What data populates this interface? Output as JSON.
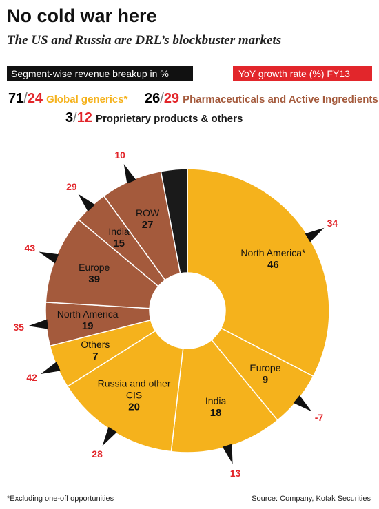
{
  "header": {
    "title": "No cold war here",
    "subtitle": "The US and Russia are DRL’s blockbuster markets"
  },
  "legend": {
    "share_label": "Segment-wise revenue breakup in %",
    "growth_label": "YoY growth rate (%) FY13",
    "separator": "/"
  },
  "chart_data": {
    "type": "donut",
    "groups": [
      {
        "name": "Global generics*",
        "share": 71,
        "growth": 24,
        "color": "#f5b21c",
        "segments": [
          {
            "name": "North America*",
            "value": 46,
            "growth": 34
          },
          {
            "name": "Europe",
            "value": 9,
            "growth": -7
          },
          {
            "name": "India",
            "value": 18,
            "growth": 13
          },
          {
            "name": "Russia and other CIS",
            "value": 20,
            "growth": 28
          },
          {
            "name": "Others",
            "value": 7,
            "growth": 42
          }
        ]
      },
      {
        "name": "Pharmaceuticals and Active Ingredients",
        "share": 26,
        "growth": 29,
        "color": "#a45a3c",
        "segments": [
          {
            "name": "North America",
            "value": 19,
            "growth": 35
          },
          {
            "name": "Europe",
            "value": 39,
            "growth": 43
          },
          {
            "name": "India",
            "value": 15,
            "growth": 29
          },
          {
            "name": "ROW",
            "value": 27,
            "growth": 10
          }
        ]
      },
      {
        "name": "Proprietary products & others",
        "share": 3,
        "growth": 12,
        "color": "#1a1a1a"
      }
    ]
  },
  "footer": {
    "note": "*Excluding one-off opportunities",
    "source": "Source: Company, Kotak Securities"
  }
}
